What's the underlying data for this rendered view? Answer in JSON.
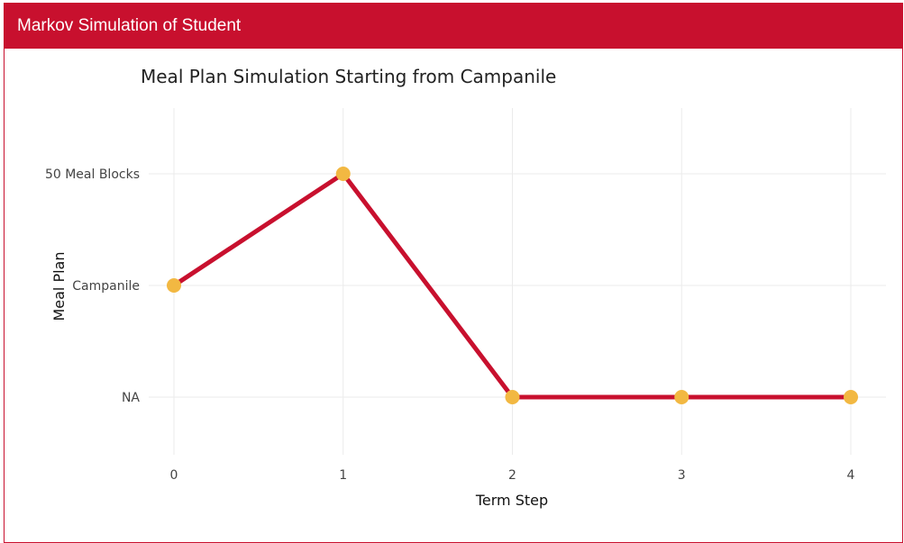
{
  "app": {
    "title": "Markov Simulation of Student"
  },
  "colors": {
    "header_bg": "#c8102e",
    "line": "#c8102e",
    "marker": "#f2b842",
    "grid": "#ebebeb"
  },
  "chart_data": {
    "type": "line",
    "title": "Meal Plan Simulation Starting from Campanile",
    "xlabel": "Term Step",
    "ylabel": "Meal Plan",
    "x": [
      0,
      1,
      2,
      3,
      4
    ],
    "y_categories": [
      "NA",
      "Campanile",
      "50 Meal Blocks"
    ],
    "series": [
      {
        "values": [
          "Campanile",
          "50 Meal Blocks",
          "NA",
          "NA",
          "NA"
        ]
      }
    ],
    "xticks": [
      "0",
      "1",
      "2",
      "3",
      "4"
    ],
    "grid": true
  }
}
